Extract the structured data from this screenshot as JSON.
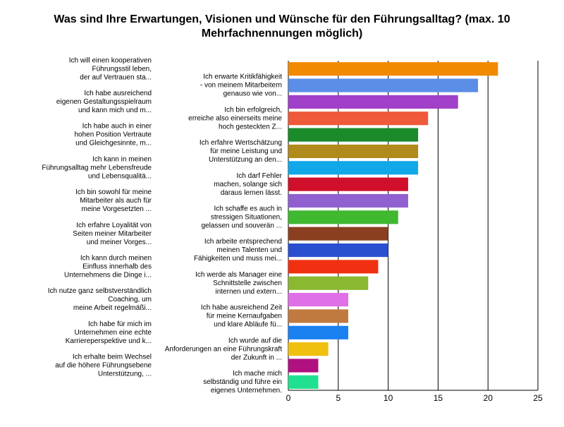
{
  "chart_data": {
    "type": "bar",
    "orientation": "horizontal",
    "title": [
      "Was sind Ihre Erwartungen, Visionen und Wünsche für den Führungsalltag? (max. 10",
      "Mehrfachnennungen möglich)"
    ],
    "categories": [
      [
        "Ich will einen kooperativen",
        "Führungsstil leben,",
        "der auf Vertrauen sta..."
      ],
      [
        "Ich erwarte Kritikfähigkeit",
        "- von meinem Mitarbeitern",
        "genauso wie von..."
      ],
      [
        "Ich habe ausreichend",
        "eigenen Gestaltungsspielraum",
        "und kann mich und m..."
      ],
      [
        "Ich bin erfolgreich,",
        "erreiche also einerseits meine",
        "hoch gesteckten Z..."
      ],
      [
        "Ich habe auch in einer",
        "hohen Position Vertraute",
        "und Gleichgesinnte, m..."
      ],
      [
        "Ich erfahre Wertschätzung",
        "für meine Leistung und",
        "Unterstützung an den..."
      ],
      [
        "Ich kann in meinen",
        "Führungsalltag mehr Lebensfreude",
        "und Lebensqualitä..."
      ],
      [
        "Ich darf Fehler",
        "machen, solange sich",
        "daraus lernen lässt."
      ],
      [
        "Ich bin sowohl für meine",
        "Mitarbeiter als auch für",
        "meine Vorgesetzten ..."
      ],
      [
        "Ich schaffe es auch in",
        "stressigen Situationen,",
        "gelassen und souverän ..."
      ],
      [
        "Ich erfahre Loyalität von",
        "Seiten meiner Mitarbeiter",
        "und meiner Vorges..."
      ],
      [
        "Ich arbeite entsprechend",
        "meinen Talenten und",
        "Fähigkeiten und muss mei..."
      ],
      [
        "Ich kann durch meinen",
        "Einfluss innerhalb des",
        "Unternehmens die Dinge i..."
      ],
      [
        "Ich werde als Manager eine",
        "Schnittstelle zwischen",
        "internen und extern..."
      ],
      [
        "Ich nutze ganz selbstverständlich",
        "Coaching, um",
        "meine Arbeit regelmäßi..."
      ],
      [
        "Ich habe ausreichend Zeit",
        "für meine Kernaufgaben",
        "und klare Abläufe fü..."
      ],
      [
        "Ich habe für mich im",
        "Unternehmen eine echte",
        "Karriereperspektive und k..."
      ],
      [
        "Ich wurde auf die",
        "Anforderungen an eine Führungskraft",
        "der Zukunft in ..."
      ],
      [
        "Ich erhalte beim Wechsel",
        "auf die höhere Führungsebene",
        "Unterstützung, ..."
      ],
      [
        "Ich mache mich",
        "selbständig und führe ein",
        "eigenes Unternehmen."
      ]
    ],
    "values": [
      21,
      19,
      17,
      14,
      13,
      13,
      13,
      12,
      12,
      11,
      10,
      10,
      9,
      8,
      6,
      6,
      6,
      4,
      3,
      3
    ],
    "colors": [
      "#f28a00",
      "#5b8ee6",
      "#a040c8",
      "#ee5a3a",
      "#1a8a2a",
      "#b08a1a",
      "#10a8e8",
      "#d0102a",
      "#9060d0",
      "#40b830",
      "#8a4020",
      "#2a50d0",
      "#f03010",
      "#8ab830",
      "#e070e8",
      "#c07a40",
      "#1a80f0",
      "#f0c010",
      "#b01080",
      "#20e090"
    ],
    "xlim": [
      0,
      25
    ],
    "xticks": [
      0,
      5,
      10,
      15,
      20,
      25
    ],
    "grid": true
  }
}
